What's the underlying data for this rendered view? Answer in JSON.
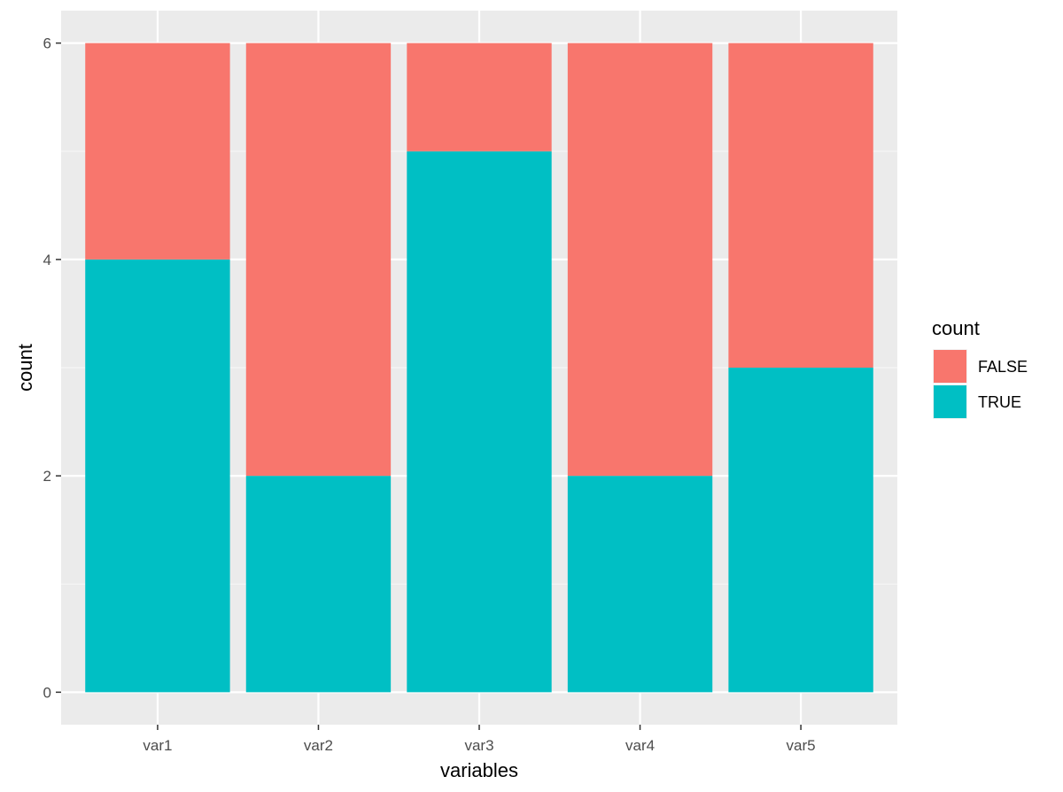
{
  "chart_data": {
    "type": "bar",
    "stacked": true,
    "categories": [
      "var1",
      "var2",
      "var3",
      "var4",
      "var5"
    ],
    "series": [
      {
        "name": "TRUE",
        "values": [
          4,
          2,
          5,
          2,
          3
        ],
        "color": "#00BFC4"
      },
      {
        "name": "FALSE",
        "values": [
          2,
          4,
          1,
          4,
          3
        ],
        "color": "#F8766D"
      }
    ],
    "xlabel": "variables",
    "ylabel": "count",
    "ylim": [
      -0.3,
      6.3
    ],
    "yticks": [
      "0",
      "2",
      "4",
      "6"
    ],
    "grid": true,
    "legend": {
      "title": "count",
      "placement": "right",
      "entries": [
        "FALSE",
        "TRUE"
      ]
    },
    "colors": {
      "panel_background": "#EBEBEB",
      "grid_major": "#FFFFFF",
      "grid_minor": "#F5F5F5",
      "tick_text": "#4D4D4D",
      "tick_mark": "#333333"
    }
  }
}
